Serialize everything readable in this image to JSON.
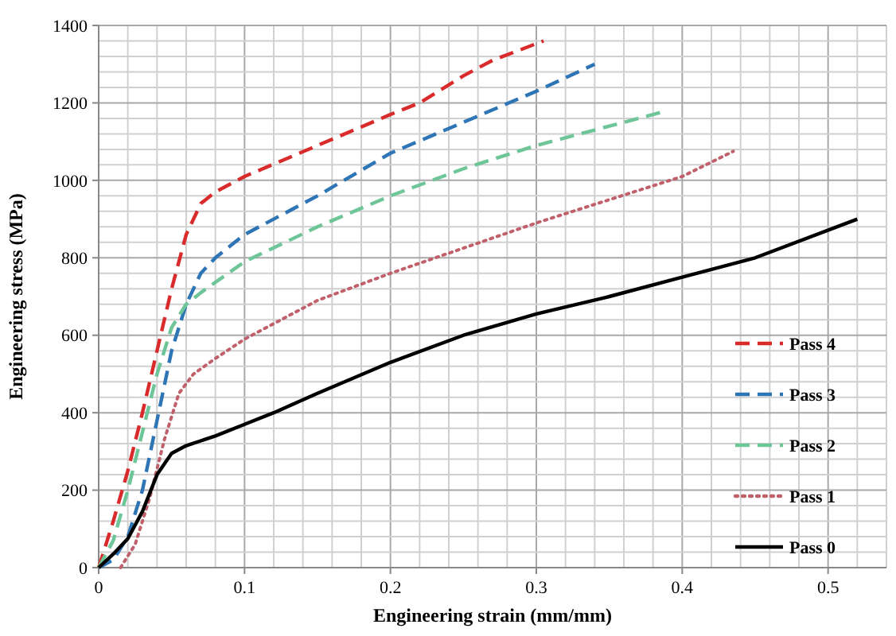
{
  "chart_data": {
    "type": "line",
    "xlabel": "Engineering strain (mm/mm)",
    "ylabel": "Engineering stress (MPa)",
    "xlim": [
      0,
      0.54
    ],
    "ylim": [
      0,
      1400
    ],
    "xticks": [
      0,
      {
        "value": 0.02,
        "label": null
      },
      {
        "value": 0.04,
        "label": null
      },
      {
        "value": 0.06,
        "label": null
      },
      {
        "value": 0.08,
        "label": null
      },
      {
        "value": 0.1,
        "label": "0.1"
      },
      {
        "value": 0.12,
        "label": null
      },
      {
        "value": 0.14,
        "label": null
      },
      {
        "value": 0.16,
        "label": null
      },
      {
        "value": 0.18,
        "label": null
      },
      {
        "value": 0.2,
        "label": "0.2"
      },
      {
        "value": 0.22,
        "label": null
      },
      {
        "value": 0.24,
        "label": null
      },
      {
        "value": 0.26,
        "label": null
      },
      {
        "value": 0.28,
        "label": null
      },
      {
        "value": 0.3,
        "label": "0.3"
      },
      {
        "value": 0.32,
        "label": null
      },
      {
        "value": 0.34,
        "label": null
      },
      {
        "value": 0.36,
        "label": null
      },
      {
        "value": 0.38,
        "label": null
      },
      {
        "value": 0.4,
        "label": "0.4"
      },
      {
        "value": 0.42,
        "label": null
      },
      {
        "value": 0.44,
        "label": null
      },
      {
        "value": 0.46,
        "label": null
      },
      {
        "value": 0.48,
        "label": null
      },
      {
        "value": 0.5,
        "label": "0.5"
      },
      {
        "value": 0.52,
        "label": null
      },
      {
        "value": 0.54,
        "label": null
      }
    ],
    "yticks": [
      0,
      {
        "value": 40,
        "label": null
      },
      {
        "value": 80,
        "label": null
      },
      {
        "value": 120,
        "label": null
      },
      {
        "value": 160,
        "label": null
      },
      200,
      {
        "value": 240,
        "label": null
      },
      {
        "value": 280,
        "label": null
      },
      {
        "value": 320,
        "label": null
      },
      {
        "value": 360,
        "label": null
      },
      400,
      {
        "value": 440,
        "label": null
      },
      {
        "value": 480,
        "label": null
      },
      {
        "value": 520,
        "label": null
      },
      {
        "value": 560,
        "label": null
      },
      600,
      {
        "value": 640,
        "label": null
      },
      {
        "value": 680,
        "label": null
      },
      {
        "value": 720,
        "label": null
      },
      {
        "value": 760,
        "label": null
      },
      800,
      {
        "value": 840,
        "label": null
      },
      {
        "value": 880,
        "label": null
      },
      {
        "value": 920,
        "label": null
      },
      {
        "value": 960,
        "label": null
      },
      1000,
      {
        "value": 1040,
        "label": null
      },
      {
        "value": 1080,
        "label": null
      },
      {
        "value": 1120,
        "label": null
      },
      {
        "value": 1160,
        "label": null
      },
      1200,
      {
        "value": 1240,
        "label": null
      },
      {
        "value": 1280,
        "label": null
      },
      {
        "value": 1320,
        "label": null
      },
      {
        "value": 1360,
        "label": null
      },
      1400
    ],
    "grid": true,
    "legend": "right",
    "marker": "none",
    "series": [
      {
        "name": "Pass 4",
        "color": "#d92b2b",
        "line_style": "dashed",
        "x": [
          0,
          0.01,
          0.02,
          0.03,
          0.04,
          0.05,
          0.06,
          0.07,
          0.08,
          0.1,
          0.15,
          0.2,
          0.22,
          0.25,
          0.27,
          0.305
        ],
        "values": [
          0,
          120,
          250,
          400,
          560,
          720,
          860,
          940,
          970,
          1010,
          1090,
          1170,
          1200,
          1270,
          1310,
          1360
        ]
      },
      {
        "name": "Pass 3",
        "color": "#2e75b6",
        "line_style": "dashed",
        "x": [
          0,
          0.01,
          0.02,
          0.03,
          0.04,
          0.05,
          0.06,
          0.07,
          0.08,
          0.1,
          0.15,
          0.2,
          0.25,
          0.3,
          0.34
        ],
        "values": [
          0,
          20,
          80,
          200,
          380,
          560,
          680,
          760,
          800,
          860,
          960,
          1070,
          1150,
          1230,
          1300
        ]
      },
      {
        "name": "Pass 2",
        "color": "#6ec598",
        "line_style": "dashed",
        "x": [
          0,
          0.01,
          0.02,
          0.03,
          0.04,
          0.05,
          0.06,
          0.07,
          0.1,
          0.15,
          0.2,
          0.25,
          0.3,
          0.35,
          0.385
        ],
        "values": [
          0,
          70,
          200,
          350,
          500,
          620,
          680,
          710,
          790,
          880,
          960,
          1030,
          1090,
          1140,
          1175
        ]
      },
      {
        "name": "Pass 1",
        "color": "#c0606a",
        "line_style": "dotted",
        "x": [
          0.015,
          0.025,
          0.035,
          0.045,
          0.055,
          0.065,
          0.08,
          0.1,
          0.13,
          0.15,
          0.2,
          0.25,
          0.3,
          0.35,
          0.4,
          0.435
        ],
        "values": [
          0,
          60,
          180,
          330,
          450,
          500,
          540,
          590,
          650,
          690,
          760,
          825,
          890,
          950,
          1010,
          1075
        ]
      },
      {
        "name": "Pass 0",
        "color": "#000000",
        "line_style": "solid",
        "x": [
          0,
          0.01,
          0.02,
          0.03,
          0.04,
          0.05,
          0.06,
          0.08,
          0.1,
          0.12,
          0.15,
          0.2,
          0.25,
          0.3,
          0.35,
          0.4,
          0.45,
          0.52
        ],
        "values": [
          0,
          35,
          75,
          145,
          240,
          295,
          315,
          340,
          370,
          400,
          450,
          530,
          600,
          655,
          700,
          750,
          800,
          900
        ]
      }
    ]
  }
}
